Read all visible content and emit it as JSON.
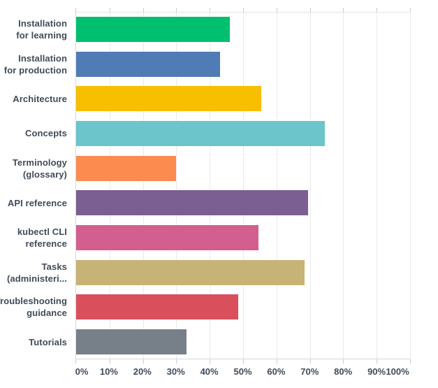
{
  "chart_data": {
    "type": "bar",
    "orientation": "horizontal",
    "title": "",
    "xlabel": "",
    "ylabel": "",
    "unit": "%",
    "xlim": [
      0,
      100
    ],
    "grid": true,
    "legend": "none",
    "categories": [
      "Installation for learning",
      "Installation for production",
      "Architecture",
      "Concepts",
      "Terminology (glossary)",
      "API reference",
      "kubectl CLI reference",
      "Tasks (administeri...",
      "Troubleshooting guidance",
      "Tutorials"
    ],
    "category_label_lines": [
      [
        "Installation",
        "for learning"
      ],
      [
        "Installation",
        "for production"
      ],
      [
        "Architecture"
      ],
      [
        "Concepts"
      ],
      [
        "Terminology",
        "(glossary)"
      ],
      [
        "API reference"
      ],
      [
        "kubectl CLI",
        "reference"
      ],
      [
        "Tasks",
        "(administeri..."
      ],
      [
        "Troubleshooting",
        "guidance"
      ],
      [
        "Tutorials"
      ]
    ],
    "values": [
      46,
      43,
      55.5,
      74.5,
      30,
      69.5,
      54.5,
      68.5,
      48.5,
      33
    ],
    "colors": [
      "#00BF6F",
      "#507CB6",
      "#F8BE00",
      "#6BC5CB",
      "#FC8B4F",
      "#7B5E92",
      "#D35F8E",
      "#C7B375",
      "#D94F5C",
      "#777F89"
    ],
    "x_tick_labels": [
      "0%",
      "10%",
      "20%",
      "30%",
      "40%",
      "50%",
      "60%",
      "70%",
      "80%",
      "90%",
      "100%"
    ],
    "axis_text_color": "#404b58",
    "gridline_color": "#e9eaeb",
    "tick_color": "#c6cbd0"
  }
}
